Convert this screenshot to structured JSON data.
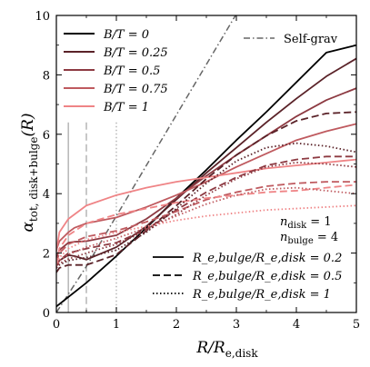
{
  "chart_data": {
    "type": "line",
    "xlabel": "R/R_e,disk",
    "ylabel": "α_tot, disk+bulge(R)",
    "xlim": [
      0,
      5
    ],
    "ylim": [
      0,
      10
    ],
    "x_ticks": [
      0,
      1,
      2,
      3,
      4,
      5
    ],
    "y_ticks": [
      0,
      2,
      4,
      6,
      8,
      10
    ],
    "grid": false,
    "legend_bt": {
      "placement": "top-left",
      "entries": [
        {
          "label": "B/T = 0",
          "color": "#000000"
        },
        {
          "label": "B/T = 0.25",
          "color": "#5a2228"
        },
        {
          "label": "B/T = 0.5",
          "color": "#8d3a42"
        },
        {
          "label": "B/T = 0.75",
          "color": "#bf5a5f"
        },
        {
          "label": "B/T = 1",
          "color": "#ef8486"
        }
      ]
    },
    "legend_selfgrav": {
      "placement": "top-right",
      "label": "Self-grav",
      "color": "#666666"
    },
    "annotation_ndisk": "n_disk = 1",
    "annotation_nbulge": "n_bulge = 4",
    "annotation_nbulge_color": "#ef8486",
    "legend_ratio": {
      "placement": "bottom-right",
      "entries": [
        {
          "label": "R_e,bulge/R_e,disk = 0.2",
          "style": "solid"
        },
        {
          "label": "R_e,bulge/R_e,disk = 0.5",
          "style": "dashed"
        },
        {
          "label": "R_e,bulge/R_e,disk = 1",
          "style": "dotted"
        }
      ]
    },
    "vertical_markers": [
      {
        "x": 0.2,
        "style": "solid",
        "color": "#bbbbbb"
      },
      {
        "x": 0.5,
        "style": "dashed",
        "color": "#bbbbbb"
      },
      {
        "x": 1.0,
        "style": "dotted",
        "color": "#bbbbbb"
      }
    ],
    "self_grav_line": {
      "x": [
        0,
        0.5,
        1,
        1.5,
        2,
        2.5,
        3,
        3.1
      ],
      "y": [
        0,
        1.55,
        3.25,
        4.95,
        6.65,
        8.35,
        10.05,
        10.4
      ],
      "color": "#666666",
      "style": "dashdot"
    },
    "series": [
      {
        "bt": 0,
        "ratio": 0.2,
        "style": "solid",
        "color": "#000000",
        "x": [
          0,
          0.5,
          1,
          1.5,
          2,
          2.5,
          3,
          3.5,
          4,
          4.5,
          5
        ],
        "y": [
          0.2,
          1.0,
          1.9,
          2.85,
          3.85,
          4.8,
          5.8,
          6.75,
          7.75,
          8.75,
          9.0
        ]
      },
      {
        "bt": 0.25,
        "ratio": 0.2,
        "style": "solid",
        "color": "#5a2228",
        "x": [
          0,
          0.05,
          0.2,
          0.3,
          0.5,
          1,
          1.5,
          2,
          2.5,
          3,
          3.5,
          4,
          4.5,
          5
        ],
        "y": [
          1.55,
          1.75,
          1.93,
          1.9,
          1.78,
          2.2,
          2.9,
          3.8,
          4.7,
          5.55,
          6.4,
          7.2,
          7.95,
          8.55
        ]
      },
      {
        "bt": 0.5,
        "ratio": 0.2,
        "style": "solid",
        "color": "#8d3a42",
        "x": [
          0,
          0.05,
          0.2,
          0.3,
          0.5,
          1,
          1.5,
          2,
          2.5,
          3,
          3.5,
          4,
          4.5,
          5
        ],
        "y": [
          1.85,
          2.1,
          2.35,
          2.38,
          2.4,
          2.6,
          3.15,
          3.85,
          4.6,
          5.3,
          5.95,
          6.6,
          7.15,
          7.55
        ]
      },
      {
        "bt": 0.75,
        "ratio": 0.2,
        "style": "solid",
        "color": "#bf5a5f",
        "x": [
          0,
          0.05,
          0.2,
          0.3,
          0.5,
          1,
          1.5,
          2,
          2.5,
          3,
          3.5,
          4,
          4.5,
          5
        ],
        "y": [
          2.1,
          2.4,
          2.7,
          2.85,
          3.0,
          3.2,
          3.55,
          3.95,
          4.4,
          4.9,
          5.35,
          5.8,
          6.1,
          6.35
        ]
      },
      {
        "bt": 1,
        "ratio": 0.2,
        "style": "solid",
        "color": "#ef8486",
        "x": [
          0,
          0.05,
          0.2,
          0.5,
          1,
          1.5,
          2,
          2.5,
          3,
          3.5,
          4,
          4.5,
          5
        ],
        "y": [
          2.05,
          2.7,
          3.15,
          3.6,
          3.95,
          4.2,
          4.4,
          4.55,
          4.7,
          4.85,
          4.95,
          5.05,
          5.15
        ]
      },
      {
        "bt": 0.25,
        "ratio": 0.5,
        "style": "dashed",
        "color": "#5a2228",
        "x": [
          0,
          0.05,
          0.2,
          0.5,
          1,
          1.5,
          2,
          2.5,
          3,
          3.5,
          4,
          4.5,
          5
        ],
        "y": [
          1.35,
          1.5,
          1.6,
          1.6,
          1.95,
          2.75,
          3.6,
          4.5,
          5.3,
          5.95,
          6.45,
          6.7,
          6.75
        ]
      },
      {
        "bt": 0.5,
        "ratio": 0.5,
        "style": "dashed",
        "color": "#8d3a42",
        "x": [
          0,
          0.05,
          0.2,
          0.5,
          1,
          1.5,
          2,
          2.5,
          3,
          3.5,
          4,
          4.5,
          5
        ],
        "y": [
          1.55,
          1.75,
          2.0,
          2.15,
          2.35,
          2.8,
          3.45,
          4.05,
          4.55,
          4.95,
          5.15,
          5.25,
          5.25
        ]
      },
      {
        "bt": 0.75,
        "ratio": 0.5,
        "style": "dashed",
        "color": "#bf5a5f",
        "x": [
          0,
          0.05,
          0.2,
          0.5,
          1,
          1.5,
          2,
          2.5,
          3,
          3.5,
          4,
          4.5,
          5
        ],
        "y": [
          1.7,
          2.0,
          2.3,
          2.55,
          2.75,
          3.05,
          3.4,
          3.8,
          4.05,
          4.25,
          4.35,
          4.4,
          4.4
        ]
      },
      {
        "bt": 1,
        "ratio": 0.5,
        "style": "dashed",
        "color": "#ef8486",
        "x": [
          0,
          0.05,
          0.2,
          0.5,
          1,
          1.5,
          2,
          2.5,
          3,
          3.5,
          4,
          4.5,
          5
        ],
        "y": [
          1.6,
          2.15,
          2.6,
          3.0,
          3.3,
          3.5,
          3.7,
          3.85,
          3.95,
          4.05,
          4.1,
          4.2,
          4.3
        ]
      },
      {
        "bt": 0.25,
        "ratio": 1,
        "style": "dotted",
        "color": "#5a2228",
        "x": [
          0,
          0.05,
          0.2,
          0.5,
          1,
          1.5,
          2,
          2.5,
          3,
          3.5,
          4,
          4.5,
          5
        ],
        "y": [
          1.5,
          1.6,
          1.75,
          1.85,
          2.1,
          2.7,
          3.5,
          4.35,
          5.1,
          5.55,
          5.7,
          5.6,
          5.4
        ]
      },
      {
        "bt": 0.5,
        "ratio": 1,
        "style": "dotted",
        "color": "#8d3a42",
        "x": [
          0,
          0.05,
          0.2,
          0.5,
          1,
          1.5,
          2,
          2.5,
          3,
          3.5,
          4,
          4.5,
          5
        ],
        "y": [
          1.5,
          1.65,
          1.8,
          2.0,
          2.3,
          2.75,
          3.3,
          3.95,
          4.5,
          4.9,
          5.05,
          5.0,
          4.9
        ]
      },
      {
        "bt": 0.75,
        "ratio": 1,
        "style": "dotted",
        "color": "#bf5a5f",
        "x": [
          0,
          0.05,
          0.2,
          0.5,
          1,
          1.5,
          2,
          2.5,
          3,
          3.5,
          4,
          4.5,
          5
        ],
        "y": [
          1.55,
          1.75,
          1.95,
          2.2,
          2.5,
          2.85,
          3.25,
          3.65,
          3.95,
          4.15,
          4.2,
          4.1,
          4.0
        ]
      },
      {
        "bt": 1,
        "ratio": 1,
        "style": "dotted",
        "color": "#ef8486",
        "x": [
          0,
          0.05,
          0.2,
          0.5,
          1,
          1.5,
          2,
          2.5,
          3,
          3.5,
          4,
          4.5,
          5
        ],
        "y": [
          1.55,
          1.85,
          2.15,
          2.45,
          2.7,
          2.9,
          3.1,
          3.25,
          3.35,
          3.45,
          3.5,
          3.55,
          3.6
        ]
      }
    ]
  }
}
